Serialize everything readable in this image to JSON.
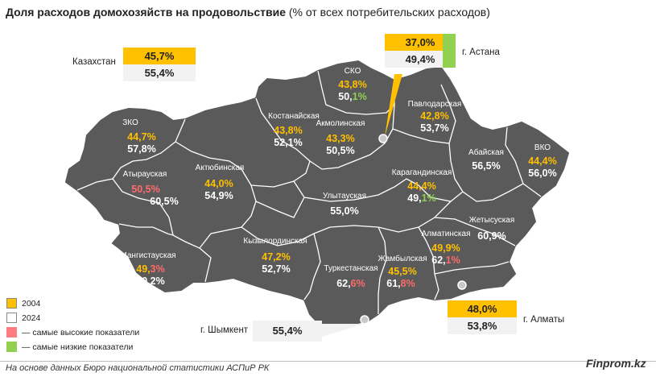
{
  "title": {
    "bold": "Доля расходов домохозяйств на продовольствие",
    "rest": "(% от всех потребительских расходов)"
  },
  "kazakhstan": {
    "label": "Казахстан",
    "v2004": "45,7%",
    "v2024": "55,4%"
  },
  "astana": {
    "label": "г. Астана",
    "v2004": "37,0%",
    "v2024": "49,4%"
  },
  "almaty": {
    "label": "г. Алматы",
    "v2004": "48,0%",
    "v2024": "53,8%"
  },
  "shymkent": {
    "label": "г. Шымкент",
    "v2024": "55,4%"
  },
  "regions": {
    "sko": {
      "name": "СКО",
      "v2004": "43,8%",
      "v2024_a": "50,",
      "v2024_b": "1%"
    },
    "kostanay": {
      "name": "Костанайская",
      "v2004": "43,8%",
      "v2024": "52,1%"
    },
    "akmola": {
      "name": "Акмолинская",
      "v2004": "43,3%",
      "v2024": "50,5%"
    },
    "pavlodar": {
      "name": "Павлодарская",
      "v2004": "42,8%",
      "v2024": "53,7%"
    },
    "zko": {
      "name": "ЗКО",
      "v2004": "44,7%",
      "v2024": "57,8%"
    },
    "atyrau": {
      "name": "Атырауская",
      "v2004": "50,5%",
      "v2024": "60,5%"
    },
    "aktobe": {
      "name": "Актюбинская",
      "v2004": "44,0%",
      "v2024": "54,9%"
    },
    "abay": {
      "name": "Абайская",
      "v2024": "56,5%"
    },
    "vko": {
      "name": "ВКО",
      "v2004": "44,4%",
      "v2024": "56,0%"
    },
    "karaganda": {
      "name": "Карагандинская",
      "v2004": "44,4%",
      "v2024_a": "49,",
      "v2024_b": "1%"
    },
    "ulytau": {
      "name": "Улытауская",
      "v2024": "55,0%"
    },
    "zhetysu": {
      "name": "Жетысуская",
      "v2024": "60,9%"
    },
    "almatyobl": {
      "name": "Алматинская",
      "v2004": "49,9%",
      "v2024_a": "62,",
      "v2024_b": "1%"
    },
    "mangystau": {
      "name": "Мангистауская",
      "v2004_a": "49,",
      "v2004_b": "3%",
      "v2024": "60,2%"
    },
    "kyzylorda": {
      "name": "Кызылординская",
      "v2004": "47,2%",
      "v2024": "52,7%"
    },
    "turkestan": {
      "name": "Туркестанская",
      "v2024_a": "62,",
      "v2024_b": "6%"
    },
    "zhambyl": {
      "name": "Жамбылская",
      "v2004": "45,5%",
      "v2024_a": "61,",
      "v2024_b": "8%"
    }
  },
  "legend": {
    "y2004": "2004",
    "y2024": "2024",
    "high": "— самые высокие показатели",
    "low": "— самые низкие показатели"
  },
  "footer": "На основе данных Бюро национальной статистики АСПиР РК",
  "brand": "Finprom.kz",
  "colors": {
    "map": "#5a5a5a",
    "border": "#ffffff",
    "accent2004": "#ffc000",
    "high": "#ff7c80",
    "low": "#92d050"
  }
}
